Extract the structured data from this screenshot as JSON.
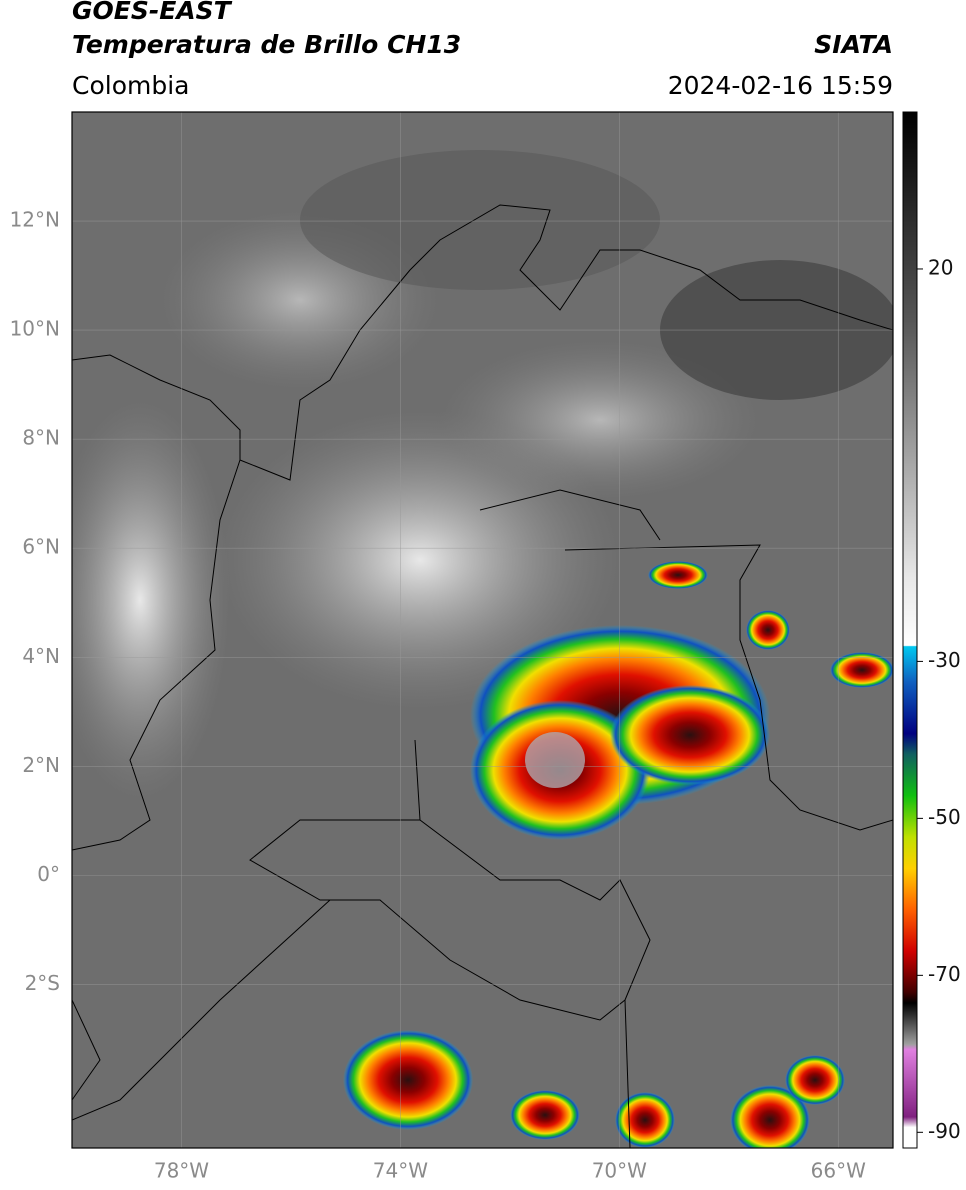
{
  "header": {
    "title": "GOES-EAST",
    "subtitle": "Temperatura de Brillo CH13",
    "source": "SIATA",
    "region": "Colombia",
    "timestamp": "2024-02-16 15:59"
  },
  "map": {
    "lon_range": [
      -80,
      -65
    ],
    "lat_range": [
      -5,
      14
    ],
    "lat_labels": [
      {
        "value": 12,
        "label": "12°N"
      },
      {
        "value": 10,
        "label": "10°N"
      },
      {
        "value": 8,
        "label": "8°N"
      },
      {
        "value": 6,
        "label": "6°N"
      },
      {
        "value": 4,
        "label": "4°N"
      },
      {
        "value": 2,
        "label": "2°N"
      },
      {
        "value": 0,
        "label": "0°"
      },
      {
        "value": -2,
        "label": "2°S"
      }
    ],
    "lon_labels": [
      {
        "value": -78,
        "label": "78°W"
      },
      {
        "value": -74,
        "label": "74°W"
      },
      {
        "value": -70,
        "label": "70°W"
      },
      {
        "value": -66,
        "label": "66°W"
      }
    ]
  },
  "colorbar": {
    "range": [
      -92,
      40
    ],
    "ticks": [
      20,
      -30,
      -50,
      -70,
      -90
    ]
  }
}
